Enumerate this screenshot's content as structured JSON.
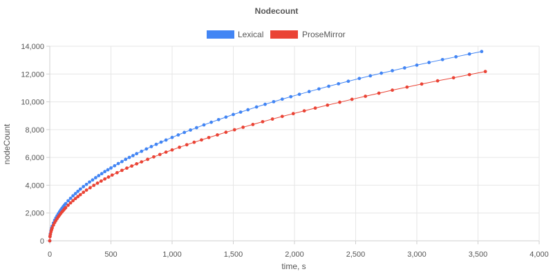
{
  "chart_data": {
    "type": "scatter",
    "title": "Nodecount",
    "xlabel": "time, s",
    "ylabel": "nodeCount",
    "xlim": [
      0,
      4000
    ],
    "ylim": [
      0,
      14000
    ],
    "x_ticks": [
      "0",
      "500",
      "1,000",
      "1,500",
      "2,000",
      "2,500",
      "3,000",
      "3,500",
      "4,000"
    ],
    "y_ticks": [
      "0",
      "2,000",
      "4,000",
      "6,000",
      "8,000",
      "10,000",
      "12,000",
      "14,000"
    ],
    "grid": true,
    "legend_position": "top",
    "series": [
      {
        "name": "Lexical",
        "color": "#4285f4",
        "points": [
          [
            0,
            0
          ],
          [
            2,
            330
          ],
          [
            5,
            520
          ],
          [
            10,
            740
          ],
          [
            15,
            900
          ],
          [
            20,
            1050
          ],
          [
            30,
            1280
          ],
          [
            40,
            1480
          ],
          [
            50,
            1650
          ],
          [
            60,
            1800
          ],
          [
            70,
            1950
          ],
          [
            80,
            2090
          ],
          [
            90,
            2220
          ],
          [
            100,
            2340
          ],
          [
            110,
            2460
          ],
          [
            120,
            2570
          ],
          [
            130,
            2680
          ],
          [
            150,
            2880
          ],
          [
            170,
            3060
          ],
          [
            190,
            3240
          ],
          [
            210,
            3400
          ],
          [
            230,
            3560
          ],
          [
            250,
            3720
          ],
          [
            275,
            3900
          ],
          [
            300,
            4060
          ],
          [
            325,
            4230
          ],
          [
            350,
            4380
          ],
          [
            375,
            4540
          ],
          [
            400,
            4690
          ],
          [
            425,
            4830
          ],
          [
            450,
            4980
          ],
          [
            475,
            5110
          ],
          [
            500,
            5240
          ],
          [
            530,
            5400
          ],
          [
            560,
            5560
          ],
          [
            590,
            5700
          ],
          [
            620,
            5860
          ],
          [
            650,
            6000
          ],
          [
            680,
            6130
          ],
          [
            710,
            6270
          ],
          [
            750,
            6440
          ],
          [
            790,
            6610
          ],
          [
            830,
            6780
          ],
          [
            870,
            6940
          ],
          [
            910,
            7100
          ],
          [
            950,
            7250
          ],
          [
            1000,
            7440
          ],
          [
            1050,
            7620
          ],
          [
            1100,
            7800
          ],
          [
            1150,
            7970
          ],
          [
            1200,
            8140
          ],
          [
            1260,
            8340
          ],
          [
            1320,
            8530
          ],
          [
            1380,
            8720
          ],
          [
            1440,
            8900
          ],
          [
            1500,
            9090
          ],
          [
            1560,
            9260
          ],
          [
            1620,
            9430
          ],
          [
            1690,
            9630
          ],
          [
            1760,
            9820
          ],
          [
            1830,
            10010
          ],
          [
            1900,
            10190
          ],
          [
            1970,
            10370
          ],
          [
            2040,
            10540
          ],
          [
            2120,
            10740
          ],
          [
            2200,
            10930
          ],
          [
            2280,
            11120
          ],
          [
            2360,
            11300
          ],
          [
            2440,
            11480
          ],
          [
            2530,
            11680
          ],
          [
            2620,
            11870
          ],
          [
            2710,
            12060
          ],
          [
            2800,
            12240
          ],
          [
            2900,
            12440
          ],
          [
            3000,
            12640
          ],
          [
            3100,
            12830
          ],
          [
            3210,
            13040
          ],
          [
            3320,
            13240
          ],
          [
            3430,
            13440
          ],
          [
            3530,
            13620
          ]
        ]
      },
      {
        "name": "ProseMirror",
        "color": "#ea4335",
        "points": [
          [
            0,
            0
          ],
          [
            2,
            300
          ],
          [
            5,
            460
          ],
          [
            10,
            650
          ],
          [
            15,
            800
          ],
          [
            20,
            930
          ],
          [
            30,
            1130
          ],
          [
            40,
            1310
          ],
          [
            50,
            1460
          ],
          [
            60,
            1600
          ],
          [
            70,
            1730
          ],
          [
            80,
            1850
          ],
          [
            90,
            1970
          ],
          [
            100,
            2080
          ],
          [
            110,
            2180
          ],
          [
            120,
            2290
          ],
          [
            130,
            2380
          ],
          [
            150,
            2560
          ],
          [
            170,
            2730
          ],
          [
            190,
            2890
          ],
          [
            210,
            3040
          ],
          [
            230,
            3180
          ],
          [
            250,
            3320
          ],
          [
            275,
            3490
          ],
          [
            300,
            3650
          ],
          [
            330,
            3820
          ],
          [
            360,
            3990
          ],
          [
            390,
            4150
          ],
          [
            420,
            4300
          ],
          [
            450,
            4450
          ],
          [
            480,
            4590
          ],
          [
            510,
            4730
          ],
          [
            550,
            4900
          ],
          [
            590,
            5070
          ],
          [
            630,
            5230
          ],
          [
            670,
            5380
          ],
          [
            710,
            5540
          ],
          [
            750,
            5680
          ],
          [
            800,
            5860
          ],
          [
            850,
            6040
          ],
          [
            900,
            6210
          ],
          [
            950,
            6380
          ],
          [
            1000,
            6540
          ],
          [
            1060,
            6730
          ],
          [
            1120,
            6910
          ],
          [
            1180,
            7090
          ],
          [
            1240,
            7260
          ],
          [
            1300,
            7430
          ],
          [
            1370,
            7620
          ],
          [
            1440,
            7810
          ],
          [
            1510,
            7990
          ],
          [
            1580,
            8170
          ],
          [
            1660,
            8370
          ],
          [
            1740,
            8570
          ],
          [
            1820,
            8760
          ],
          [
            1900,
            8950
          ],
          [
            1990,
            9150
          ],
          [
            2080,
            9350
          ],
          [
            2170,
            9550
          ],
          [
            2270,
            9760
          ],
          [
            2370,
            9970
          ],
          [
            2470,
            10180
          ],
          [
            2580,
            10400
          ],
          [
            2690,
            10620
          ],
          [
            2800,
            10840
          ],
          [
            2920,
            11060
          ],
          [
            3040,
            11280
          ],
          [
            3170,
            11510
          ],
          [
            3300,
            11730
          ],
          [
            3430,
            11960
          ],
          [
            3560,
            12180
          ]
        ]
      }
    ]
  }
}
